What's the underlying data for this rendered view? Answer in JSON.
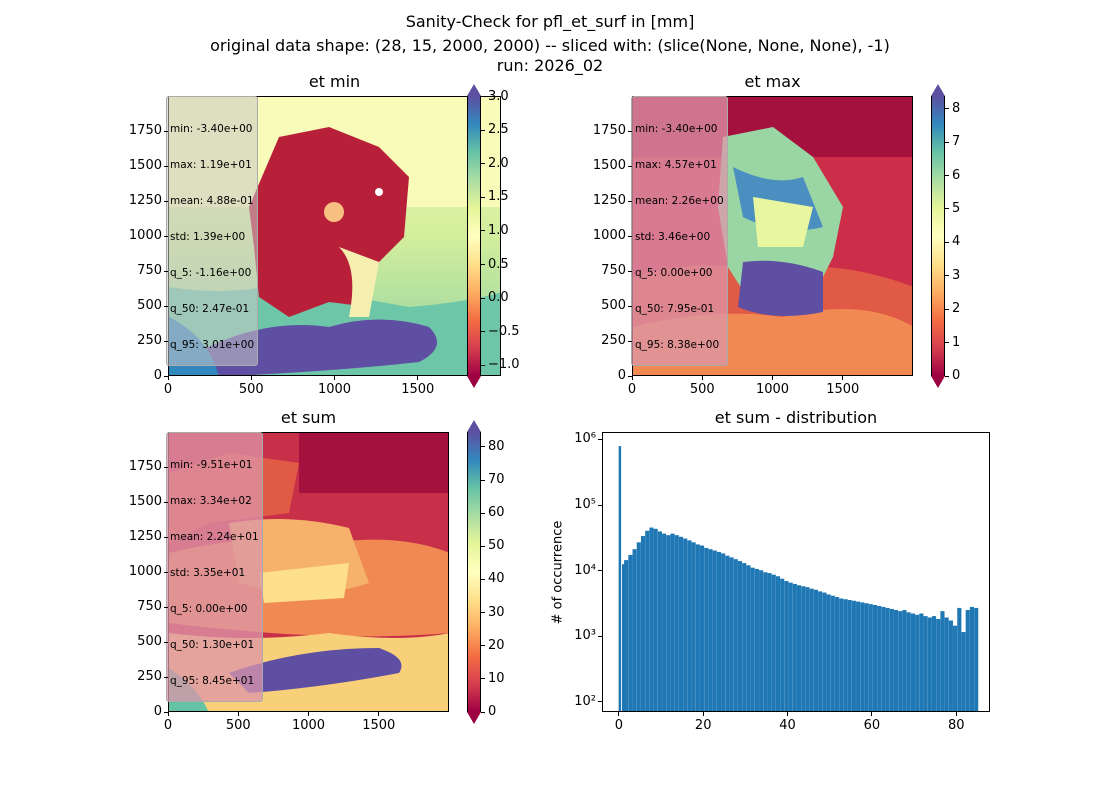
{
  "suptitle": [
    "Sanity-Check for pfl_et_surf in [mm]",
    "original data shape: (28, 15, 2000, 2000) -- sliced with: (slice(None, None, None), -1)",
    "run: 2026_02"
  ],
  "panels": [
    {
      "title": "et min",
      "stats": [
        "min: -3.40e+00",
        "max: 1.19e+01",
        "mean: 4.88e-01",
        "std: 1.39e+00",
        "q_5: -1.16e+00",
        "q_50: 2.47e-01",
        "q_95: 3.01e+00"
      ],
      "colorbar_ticks": [
        "−1.0",
        "−0.5",
        "0.0",
        "0.5",
        "1.0",
        "1.5",
        "2.0",
        "2.5",
        "3.0"
      ],
      "colorbar_range": [
        -1.16,
        3.01
      ]
    },
    {
      "title": "et max",
      "stats": [
        "min: -3.40e+00",
        "max: 4.57e+01",
        "mean: 2.26e+00",
        "std: 3.46e+00",
        "q_5: 0.00e+00",
        "q_50: 7.95e-01",
        "q_95: 8.38e+00"
      ],
      "colorbar_ticks": [
        "0",
        "1",
        "2",
        "3",
        "4",
        "5",
        "6",
        "7",
        "8"
      ],
      "colorbar_range": [
        0,
        8.38
      ]
    },
    {
      "title": "et sum",
      "stats": [
        "min: -9.51e+01",
        "max: 3.34e+02",
        "mean: 2.24e+01",
        "std: 3.35e+01",
        "q_5: 0.00e+00",
        "q_50: 1.30e+01",
        "q_95: 8.45e+01"
      ],
      "colorbar_ticks": [
        "0",
        "10",
        "20",
        "30",
        "40",
        "50",
        "60",
        "70",
        "80"
      ],
      "colorbar_range": [
        0,
        84.5
      ]
    }
  ],
  "map_axes": {
    "x_ticks": [
      "0",
      "500",
      "1000",
      "1500"
    ],
    "y_ticks": [
      "0",
      "250",
      "500",
      "750",
      "1000",
      "1250",
      "1500",
      "1750"
    ]
  },
  "chart_data": {
    "type": "bar",
    "title": "et sum - distribution",
    "ylabel": "# of occurrence",
    "xlabel": "",
    "y_scale": "log",
    "ylim": [
      70,
      1300000
    ],
    "xlim": [
      -4,
      88
    ],
    "x_ticks": [
      "0",
      "20",
      "40",
      "60",
      "80"
    ],
    "y_ticks": [
      "10²",
      "10³",
      "10⁴",
      "10⁵",
      "10⁶"
    ],
    "bar_color": "#1f77b4",
    "x": [
      0.0,
      0.5,
      1.0,
      2.0,
      3.0,
      4.0,
      5.0,
      6.0,
      7.0,
      8.0,
      9.0,
      10.0,
      11.0,
      12.0,
      13.0,
      14.0,
      15.0,
      16.0,
      17.0,
      18.0,
      19.0,
      20.0,
      21.0,
      22.0,
      23.0,
      24.0,
      25.0,
      26.0,
      27.0,
      28.0,
      29.0,
      30.0,
      31.0,
      32.0,
      33.0,
      34.0,
      35.0,
      36.0,
      37.0,
      38.0,
      39.0,
      40.0,
      41.0,
      42.0,
      43.0,
      44.0,
      45.0,
      46.0,
      47.0,
      48.0,
      49.0,
      50.0,
      51.0,
      52.0,
      53.0,
      54.0,
      55.0,
      56.0,
      57.0,
      58.0,
      59.0,
      60.0,
      61.0,
      62.0,
      63.0,
      64.0,
      65.0,
      66.0,
      67.0,
      68.0,
      69.0,
      70.0,
      71.0,
      72.0,
      73.0,
      74.0,
      75.0,
      76.0,
      77.0,
      78.0,
      79.0,
      80.0,
      81.0,
      82.0,
      83.0,
      84.0
    ],
    "values": [
      820000,
      13000,
      15000,
      18000,
      22000,
      28000,
      35000,
      42000,
      47000,
      45000,
      41000,
      38000,
      36000,
      38000,
      36000,
      34000,
      32000,
      30000,
      28000,
      26000,
      25000,
      23000,
      22000,
      21000,
      20000,
      19000,
      17500,
      16500,
      15500,
      14500,
      13500,
      12500,
      11500,
      11000,
      10500,
      9800,
      9500,
      9000,
      8500,
      7800,
      7200,
      6800,
      6500,
      6200,
      6000,
      5800,
      5500,
      5300,
      5000,
      4800,
      4500,
      4300,
      4100,
      3900,
      3800,
      3700,
      3600,
      3500,
      3400,
      3300,
      3200,
      3100,
      3000,
      2900,
      2800,
      2700,
      2600,
      2500,
      2600,
      2400,
      2300,
      2200,
      2300,
      2100,
      2000,
      2100,
      1900,
      2500,
      2000,
      1800,
      1500,
      2800,
      1200,
      2600,
      2900,
      2800
    ]
  },
  "colors": {
    "bar": "#1f77b4"
  }
}
